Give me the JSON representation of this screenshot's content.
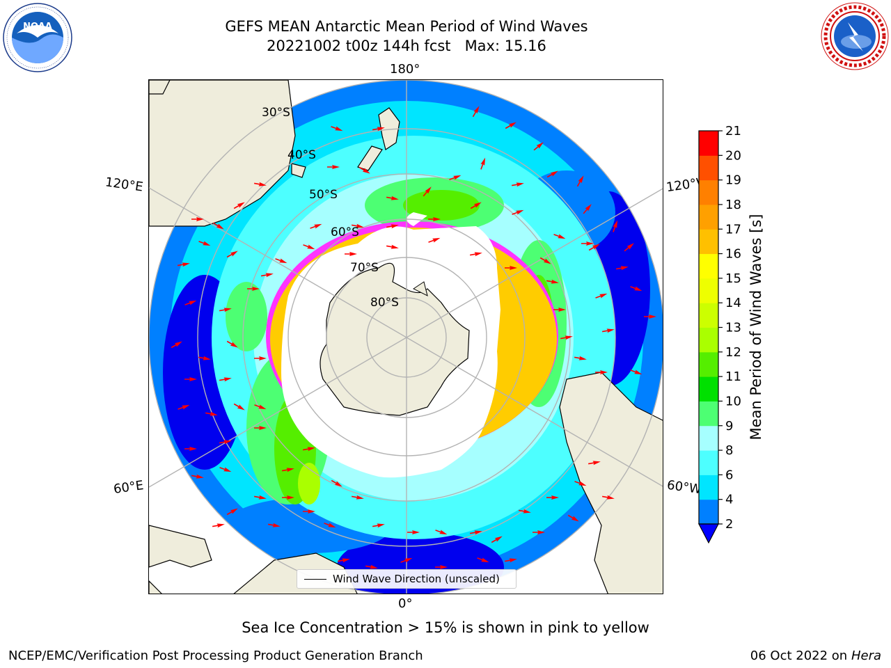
{
  "title": {
    "line1": "GEFS MEAN Antarctic Mean Period of Wind Waves",
    "line2": "20221002 t00z 144h fcst   Max: 15.16"
  },
  "logos": {
    "left": {
      "name": "NOAA",
      "ring_text": "NATIONAL OCEANIC AND ATMOSPHERIC ADMINISTRATION · U.S. DEPARTMENT OF COMMERCE"
    },
    "right": {
      "name": "NATIONAL WEATHER SERVICE"
    }
  },
  "map": {
    "projection": "south polar stereographic",
    "longitude_labels": {
      "top": "180°",
      "bottom": "0°",
      "left_upper": "120°E",
      "left_lower": "60°E",
      "right_upper": "120°W",
      "right_lower": "60°W"
    },
    "latitude_labels": [
      "30°S",
      "40°S",
      "50°S",
      "60°S",
      "70°S",
      "80°S"
    ],
    "legend": "Wind Wave Direction (unscaled)",
    "colors": {
      "land": "#efeddc",
      "ice": "#ffffff",
      "arrows": "#ff0000",
      "gridlines": "#b3b3b3",
      "ice_edge": [
        "#ff33ff",
        "#ffcc00"
      ]
    }
  },
  "colorbar": {
    "label": "Mean Period of Wind Waves [s]",
    "ticks": [
      "2",
      "4",
      "6",
      "8",
      "9",
      "10",
      "11",
      "12",
      "13",
      "14",
      "15",
      "16",
      "17",
      "18",
      "19",
      "20",
      "21"
    ],
    "bands": [
      {
        "from": 2,
        "to": 4,
        "color": "#0080ff"
      },
      {
        "from": 4,
        "to": 6,
        "color": "#00e5ff"
      },
      {
        "from": 6,
        "to": 8,
        "color": "#4dffff"
      },
      {
        "from": 8,
        "to": 9,
        "color": "#a6ffff"
      },
      {
        "from": 9,
        "to": 10,
        "color": "#4dff73"
      },
      {
        "from": 10,
        "to": 11,
        "color": "#00e000"
      },
      {
        "from": 11,
        "to": 12,
        "color": "#55ee00"
      },
      {
        "from": 12,
        "to": 13,
        "color": "#aaff00"
      },
      {
        "from": 13,
        "to": 14,
        "color": "#ccff00"
      },
      {
        "from": 14,
        "to": 15,
        "color": "#eeff00"
      },
      {
        "from": 15,
        "to": 16,
        "color": "#ffff00"
      },
      {
        "from": 16,
        "to": 17,
        "color": "#ffc000"
      },
      {
        "from": 17,
        "to": 18,
        "color": "#ffa000"
      },
      {
        "from": 18,
        "to": 19,
        "color": "#ff8000"
      },
      {
        "from": 19,
        "to": 20,
        "color": "#ff5000"
      },
      {
        "from": 20,
        "to": 21,
        "color": "#ff0000"
      }
    ],
    "extend_below_color": "#0000ff"
  },
  "ice_note": "Sea Ice Concentration > 15% is shown in pink to yellow",
  "footer": {
    "left": "NCEP/EMC/Verification Post Processing Product Generation Branch",
    "right_prefix": "06 Oct 2022 on ",
    "right_machine": "Hera"
  }
}
